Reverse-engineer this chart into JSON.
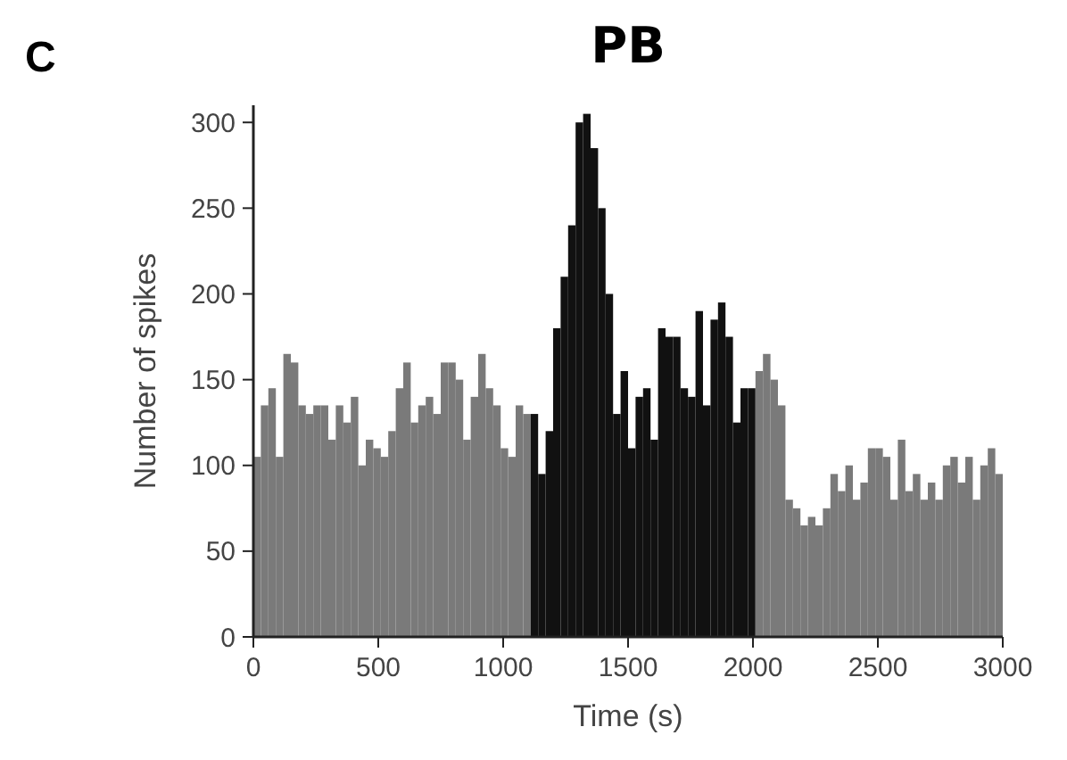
{
  "chart_data": {
    "type": "histogram",
    "title": "PB",
    "xlabel": "Time (s)",
    "ylabel": "Number of spikes",
    "annotations": [
      "C"
    ],
    "bins": [
      0,
      30,
      60,
      90,
      120,
      150,
      180,
      210,
      240,
      270,
      300,
      330,
      360,
      390,
      420,
      450,
      480,
      510,
      540,
      570,
      600,
      630,
      660,
      690,
      720,
      750,
      780,
      810,
      840,
      870,
      900,
      930,
      960,
      990,
      1020,
      1050,
      1080,
      1110,
      1140,
      1170,
      1200,
      1230,
      1260,
      1290,
      1320,
      1350,
      1380,
      1410,
      1440,
      1470,
      1500,
      1530,
      1560,
      1590,
      1620,
      1650,
      1680,
      1710,
      1740,
      1770,
      1800,
      1830,
      1860,
      1890,
      1920,
      1950,
      1980,
      2010,
      2040,
      2070,
      2100,
      2130,
      2160,
      2190,
      2220,
      2250,
      2280,
      2310,
      2340,
      2370,
      2400,
      2430,
      2460,
      2490,
      2520,
      2550,
      2580,
      2610,
      2640,
      2670,
      2700,
      2730,
      2760,
      2790,
      2820,
      2850,
      2880,
      2910,
      2940,
      2970,
      3000
    ],
    "values": [
      105,
      135,
      145,
      105,
      165,
      160,
      135,
      130,
      135,
      135,
      115,
      135,
      125,
      140,
      100,
      115,
      110,
      105,
      120,
      145,
      160,
      125,
      135,
      140,
      130,
      160,
      160,
      150,
      115,
      140,
      165,
      145,
      135,
      110,
      105,
      135,
      130,
      130,
      95,
      120,
      180,
      210,
      240,
      300,
      305,
      285,
      250,
      200,
      130,
      155,
      110,
      140,
      145,
      115,
      180,
      175,
      175,
      145,
      140,
      190,
      135,
      185,
      195,
      175,
      125,
      145,
      145,
      155,
      165,
      150,
      135,
      80,
      75,
      65,
      70,
      65,
      75,
      95,
      85,
      100,
      80,
      90,
      110,
      110,
      105,
      80,
      115,
      85,
      95,
      80,
      90,
      80,
      100,
      105,
      90,
      105,
      80,
      100,
      110,
      95
    ],
    "colors": [
      "#7a7a7a",
      "#7a7a7a",
      "#7a7a7a",
      "#7a7a7a",
      "#7a7a7a",
      "#7a7a7a",
      "#7a7a7a",
      "#7a7a7a",
      "#7a7a7a",
      "#7a7a7a",
      "#7a7a7a",
      "#7a7a7a",
      "#7a7a7a",
      "#7a7a7a",
      "#7a7a7a",
      "#7a7a7a",
      "#7a7a7a",
      "#7a7a7a",
      "#7a7a7a",
      "#7a7a7a",
      "#7a7a7a",
      "#7a7a7a",
      "#7a7a7a",
      "#7a7a7a",
      "#7a7a7a",
      "#7a7a7a",
      "#7a7a7a",
      "#7a7a7a",
      "#7a7a7a",
      "#7a7a7a",
      "#7a7a7a",
      "#7a7a7a",
      "#7a7a7a",
      "#7a7a7a",
      "#7a7a7a",
      "#7a7a7a",
      "#7a7a7a",
      "#111111",
      "#111111",
      "#111111",
      "#111111",
      "#111111",
      "#111111",
      "#111111",
      "#111111",
      "#111111",
      "#111111",
      "#111111",
      "#111111",
      "#111111",
      "#111111",
      "#111111",
      "#111111",
      "#111111",
      "#111111",
      "#111111",
      "#111111",
      "#111111",
      "#111111",
      "#111111",
      "#111111",
      "#111111",
      "#111111",
      "#111111",
      "#111111",
      "#111111",
      "#111111",
      "#7a7a7a",
      "#7a7a7a",
      "#7a7a7a",
      "#7a7a7a",
      "#7a7a7a",
      "#7a7a7a",
      "#7a7a7a",
      "#7a7a7a",
      "#7a7a7a",
      "#7a7a7a",
      "#7a7a7a",
      "#7a7a7a",
      "#7a7a7a",
      "#7a7a7a",
      "#7a7a7a",
      "#7a7a7a",
      "#7a7a7a",
      "#7a7a7a",
      "#7a7a7a",
      "#7a7a7a",
      "#7a7a7a",
      "#7a7a7a",
      "#7a7a7a",
      "#7a7a7a",
      "#7a7a7a",
      "#7a7a7a",
      "#7a7a7a",
      "#7a7a7a",
      "#7a7a7a",
      "#7a7a7a",
      "#7a7a7a",
      "#7a7a7a",
      "#7a7a7a"
    ],
    "xlim": [
      0,
      3000
    ],
    "xticks": [
      0,
      500,
      1000,
      1500,
      2000,
      2500,
      3000
    ],
    "ylim": [
      0,
      310
    ],
    "yticks": [
      0,
      50,
      100,
      150,
      200,
      250,
      300
    ]
  }
}
